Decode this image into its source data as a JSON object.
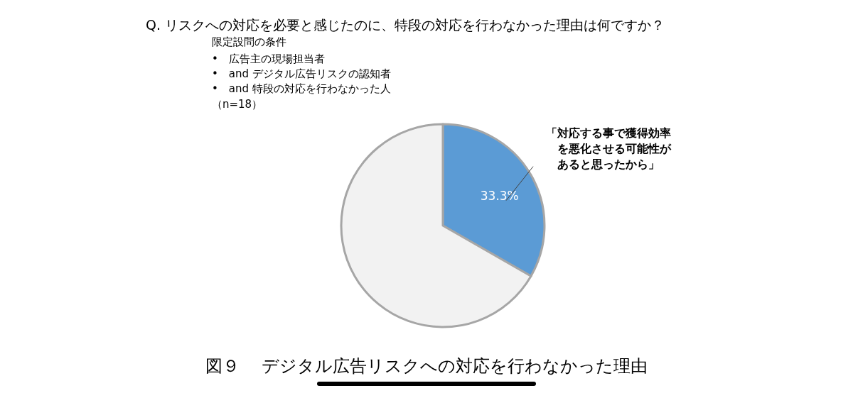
{
  "chart_data": {
    "type": "pie",
    "title": "Q. リスクへの対応を必要と感じたのに、特段の対応を行わなかった理由は何ですか？",
    "subtitle": "限定設問の条件",
    "annotations": [
      "•　広告主の現場担当者",
      "•　and デジタル広告リスクの認知者",
      "•　and 特段の対応を行わなかった人",
      "（n=18）",
      "図９　 デジタル広告リスクへの対応を行わなかった理由"
    ],
    "categories": [
      "「対応する事で獲得効率を悪化させる可能性があると思ったから」",
      null
    ],
    "values": [
      33.3,
      66.7
    ],
    "value_labels": [
      "33.3%",
      null
    ],
    "colors": [
      "#5b9bd5",
      "#f2f2f2"
    ]
  }
}
